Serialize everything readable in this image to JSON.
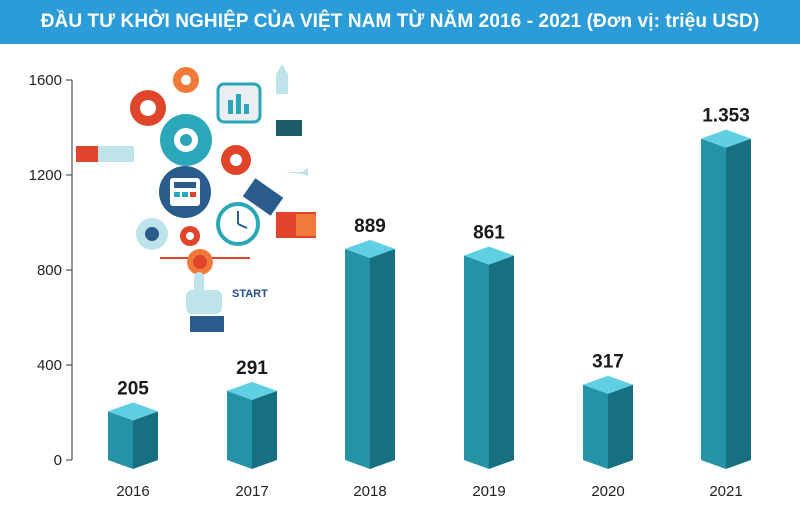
{
  "title": "ĐẦU TƯ KHỞI NGHIỆP CỦA VIỆT NAM TỪ NĂM 2016 - 2021 (Đơn vị: triệu USD)",
  "illustration": {
    "start_label": "START"
  },
  "colors": {
    "title_bg": "#2b9cd8",
    "bar_front": "#2592a6",
    "bar_side": "#16707f",
    "bar_top": "#5fd0e3"
  },
  "chart_data": {
    "type": "bar",
    "title": "ĐẦU TƯ KHỞI NGHIỆP CỦA VIỆT NAM TỪ NĂM 2016 - 2021 (Đơn vị: triệu USD)",
    "categories": [
      "2016",
      "2017",
      "2018",
      "2019",
      "2020",
      "2021"
    ],
    "values": [
      205,
      291,
      889,
      861,
      317,
      1353
    ],
    "data_labels": [
      "205",
      "291",
      "889",
      "861",
      "317",
      "1.353"
    ],
    "yticks": [
      "0",
      "400",
      "800",
      "1200",
      "1600"
    ],
    "ylim": [
      0,
      1600
    ],
    "xlabel": "",
    "ylabel": "",
    "grid": false,
    "legend": "none"
  }
}
